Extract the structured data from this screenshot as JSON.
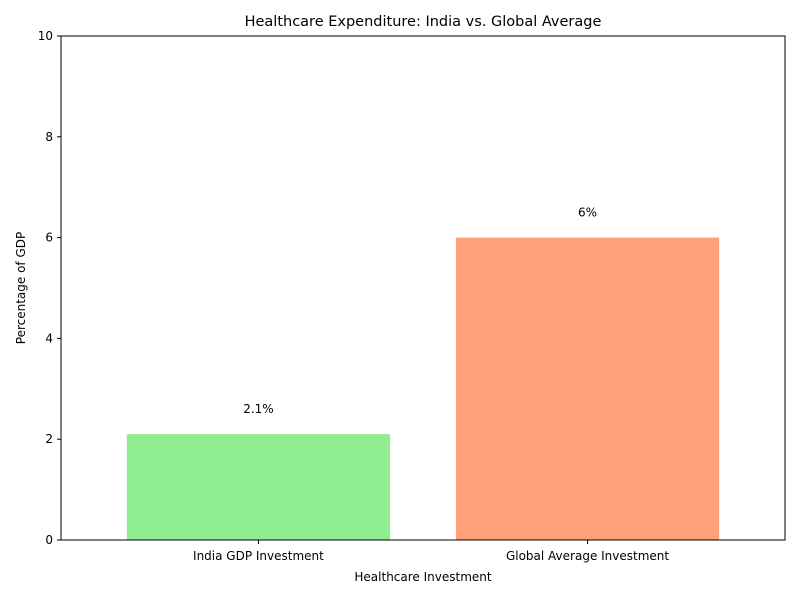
{
  "chart_data": {
    "type": "bar",
    "title": "Healthcare Expenditure: India vs. Global Average",
    "xlabel": "Healthcare Investment",
    "ylabel": "Percentage of GDP",
    "categories": [
      "India GDP Investment",
      "Global Average Investment"
    ],
    "values": [
      2.1,
      6
    ],
    "data_labels": [
      "2.1%",
      "6%"
    ],
    "colors": [
      "#90ee90",
      "#ffa07a"
    ],
    "ylim": [
      0,
      10
    ],
    "yticks": [
      0,
      2,
      4,
      6,
      8,
      10
    ],
    "grid": false,
    "legend": "none"
  }
}
